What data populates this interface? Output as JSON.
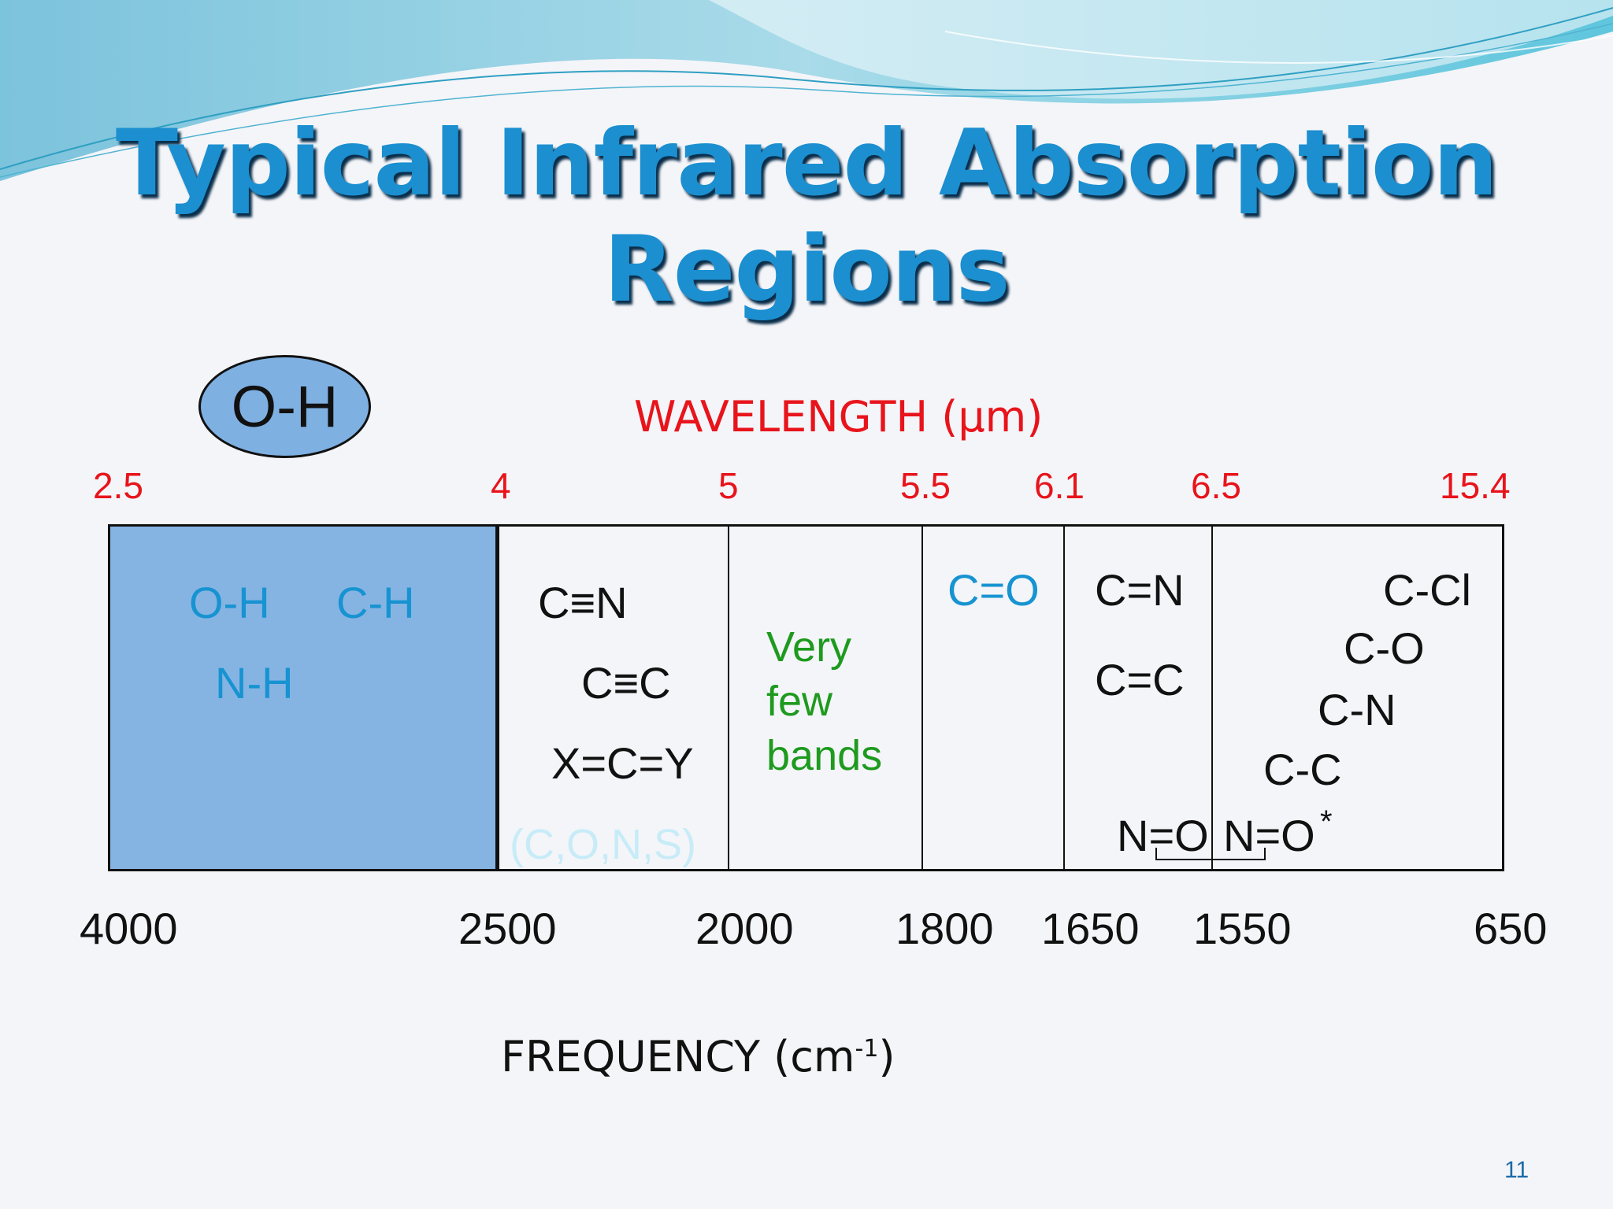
{
  "title": {
    "line1": "Typical Infrared Absorption",
    "line2": "Regions"
  },
  "highlight_badge": "O-H",
  "wavelength_axis": {
    "label": "WAVELENGTH (µm)",
    "ticks": [
      "2.5",
      "4",
      "5",
      "5.5",
      "6.1",
      "6.5",
      "15.4"
    ]
  },
  "frequency_axis": {
    "label_main": "FREQUENCY (cm",
    "label_sup": "-1",
    "label_end": ")",
    "ticks": [
      "4000",
      "2500",
      "2000",
      "1800",
      "1650",
      "1550",
      "650"
    ]
  },
  "regions": {
    "r1": {
      "oh": "O-H",
      "ch": "C-H",
      "nh": "N-H"
    },
    "r2": {
      "cn_triple": "C≡N",
      "cc_triple": "C≡C",
      "xcy": "X=C=Y",
      "note": "(C,O,N,S)"
    },
    "r3": {
      "line1": "Very",
      "line2": "few",
      "line3": "bands"
    },
    "r4": {
      "co": "C=O"
    },
    "r5": {
      "cn_double": "C=N",
      "cc_double": "C=C"
    },
    "r6": {
      "nitroso": "N=O",
      "nitro": "N=O",
      "asterisk": "*"
    },
    "r7": {
      "ccl": "C-Cl",
      "co_single": "C-O",
      "cn_single": "C-N",
      "cc_single": "C-C"
    }
  },
  "slide_number": "11",
  "colors": {
    "title": "#1b8fd0",
    "highlight_region": "#85b4e3",
    "wavelength": "#e8141b",
    "bond_blue": "#1793d1",
    "bond_green": "#1e9a1e",
    "note_faint": "#c7ecf7"
  }
}
